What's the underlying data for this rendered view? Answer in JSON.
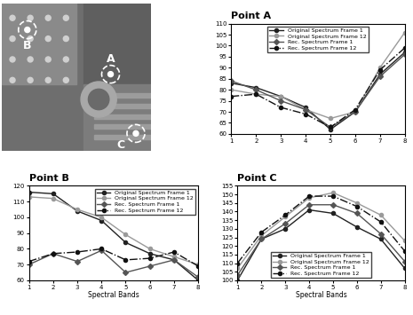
{
  "image": {
    "labels": [
      "B",
      "A",
      "C"
    ]
  },
  "chart_data": [
    {
      "type": "line",
      "title": "Point A",
      "x": [
        1,
        2,
        3,
        4,
        5,
        6,
        7,
        8
      ],
      "xlim": [
        1,
        8
      ],
      "xticks": [
        1,
        2,
        3,
        4,
        5,
        6,
        7,
        8
      ],
      "ylim": [
        60,
        110
      ],
      "yticks": [
        60,
        65,
        70,
        75,
        80,
        85,
        90,
        95,
        100,
        105,
        110
      ],
      "legend": "upper center",
      "series": [
        {
          "name": "Original Spectrum Frame 1",
          "color": "#222222",
          "marker": "circle",
          "line_style": "solid",
          "values": [
            83,
            81,
            77,
            72,
            62,
            70,
            87,
            97
          ]
        },
        {
          "name": "Original Spectrum Frame 12",
          "color": "#9a9a9a",
          "marker": "circle",
          "line_style": "solid",
          "values": [
            80,
            78,
            77,
            71,
            67,
            70,
            90,
            106
          ]
        },
        {
          "name": "Rec. Spectrum Frame 1",
          "color": "#555555",
          "marker": "diamond",
          "line_style": "solid",
          "values": [
            84,
            80,
            75,
            71,
            63,
            70,
            86,
            96
          ]
        },
        {
          "name": "Rec. Spectrum Frame 12",
          "color": "#111111",
          "marker": "circle",
          "line_style": "dashdot",
          "values": [
            77,
            78,
            72,
            69,
            63,
            71,
            89,
            99
          ]
        }
      ]
    },
    {
      "type": "line",
      "title": "Point B",
      "x_label": "Spectral Bands",
      "x": [
        1,
        2,
        3,
        4,
        5,
        6,
        7,
        8
      ],
      "xlim": [
        1,
        8
      ],
      "xticks": [
        1,
        2,
        3,
        4,
        5,
        6,
        7,
        8
      ],
      "ylim": [
        60,
        120
      ],
      "yticks": [
        60,
        70,
        80,
        90,
        100,
        110,
        120
      ],
      "legend": "upper right",
      "series": [
        {
          "name": "Original Spectrum Frame 1",
          "color": "#222222",
          "marker": "circle",
          "line_style": "solid",
          "values": [
            116,
            115,
            104,
            98,
            84,
            77,
            73,
            60
          ]
        },
        {
          "name": "Original Spectrum Frame 12",
          "color": "#9a9a9a",
          "marker": "circle",
          "line_style": "solid",
          "values": [
            113,
            112,
            105,
            100,
            89,
            80,
            75,
            70
          ]
        },
        {
          "name": "Rec. Spectrum Frame 1",
          "color": "#555555",
          "marker": "diamond",
          "line_style": "solid",
          "values": [
            70,
            77,
            72,
            79,
            65,
            69,
            73,
            62
          ]
        },
        {
          "name": "Rec. Spectrum Frame 12",
          "color": "#111111",
          "marker": "circle",
          "line_style": "dashdot",
          "values": [
            72,
            77,
            78,
            80,
            73,
            74,
            78,
            69
          ]
        }
      ]
    },
    {
      "type": "line",
      "title": "Point C",
      "x_label": "Spectral Bands",
      "x": [
        1,
        2,
        3,
        4,
        5,
        6,
        7,
        8
      ],
      "xlim": [
        1,
        8
      ],
      "xticks": [
        1,
        2,
        3,
        4,
        5,
        6,
        7,
        8
      ],
      "ylim": [
        100,
        155
      ],
      "yticks": [
        100,
        105,
        110,
        115,
        120,
        125,
        130,
        135,
        140,
        145,
        150,
        155
      ],
      "legend": "lower center",
      "series": [
        {
          "name": "Original Spectrum Frame 1",
          "color": "#222222",
          "marker": "circle",
          "line_style": "solid",
          "values": [
            100,
            124,
            130,
            141,
            139,
            131,
            124,
            107
          ]
        },
        {
          "name": "Original Spectrum Frame 12",
          "color": "#9a9a9a",
          "marker": "circle",
          "line_style": "solid",
          "values": [
            107,
            126,
            137,
            148,
            151,
            145,
            138,
            123
          ]
        },
        {
          "name": "Rec. Spectrum Frame 1",
          "color": "#555555",
          "marker": "diamond",
          "line_style": "solid",
          "values": [
            103,
            124,
            133,
            144,
            144,
            139,
            127,
            111
          ]
        },
        {
          "name": "Rec. Spectrum Frame 12",
          "color": "#111111",
          "marker": "circle",
          "line_style": "dashdot",
          "values": [
            110,
            128,
            138,
            149,
            149,
            143,
            134,
            117
          ]
        }
      ]
    }
  ]
}
